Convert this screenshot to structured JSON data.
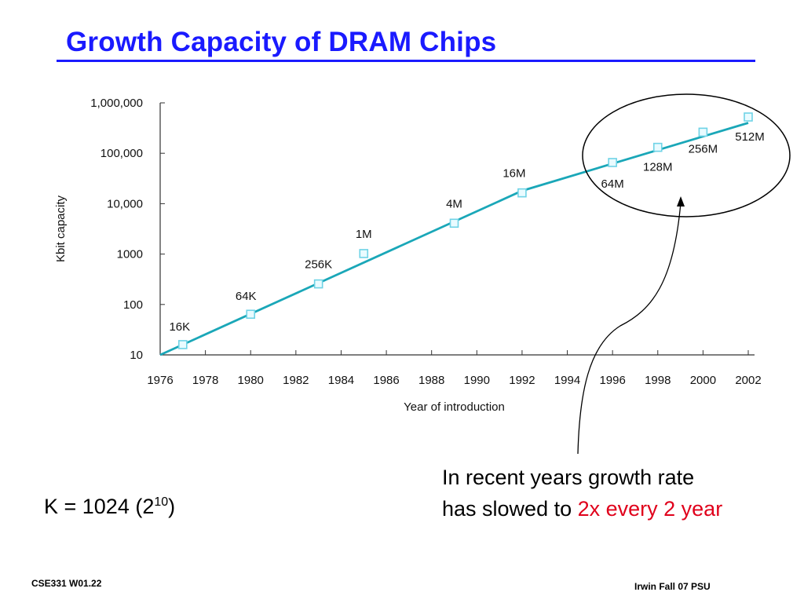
{
  "title": "Growth Capacity of DRAM Chips",
  "colors": {
    "title": "#1a1aff",
    "line": "#1aa7b8",
    "marker": "#6fd3e6",
    "highlight": "#e0001b"
  },
  "chart_data": {
    "type": "line",
    "title": "",
    "xlabel": "Year of introduction",
    "ylabel": "Kbit capacity",
    "yscale": "log",
    "xlim": [
      1976,
      2002
    ],
    "ylim": [
      10,
      1000000
    ],
    "x_ticks": [
      "1976",
      "1978",
      "1980",
      "1982",
      "1984",
      "1986",
      "1988",
      "1990",
      "1992",
      "1994",
      "1996",
      "1998",
      "2000",
      "2002"
    ],
    "y_ticks": [
      {
        "value": 10,
        "label": "10"
      },
      {
        "value": 100,
        "label": "100"
      },
      {
        "value": 1000,
        "label": "1000"
      },
      {
        "value": 10000,
        "label": "10,000"
      },
      {
        "value": 100000,
        "label": "100,000"
      },
      {
        "value": 1000000,
        "label": "1,000,000"
      }
    ],
    "trend_line": [
      {
        "x": 1976,
        "y": 10
      },
      {
        "x": 1992,
        "y": 18000
      },
      {
        "x": 2002,
        "y": 400000
      }
    ],
    "points": [
      {
        "x": 1977,
        "y": 16,
        "label": "16K"
      },
      {
        "x": 1980,
        "y": 64,
        "label": "64K"
      },
      {
        "x": 1983,
        "y": 256,
        "label": "256K"
      },
      {
        "x": 1985,
        "y": 1024,
        "label": "1M"
      },
      {
        "x": 1989,
        "y": 4096,
        "label": "4M"
      },
      {
        "x": 1992,
        "y": 16384,
        "label": "16M"
      },
      {
        "x": 1996,
        "y": 65536,
        "label": "64M"
      },
      {
        "x": 1998,
        "y": 131072,
        "label": "128M"
      },
      {
        "x": 2000,
        "y": 262144,
        "label": "256M"
      },
      {
        "x": 2002,
        "y": 524288,
        "label": "512M"
      }
    ],
    "grid": false
  },
  "note": {
    "text_before": "In recent years growth rate has slowed to ",
    "text_highlight": "2x every 2 year"
  },
  "kformula": {
    "main": "K = 1024 (2",
    "sup": "10",
    "close": ")"
  },
  "footer": {
    "left": "CSE331  W01.22",
    "right": "Irwin Fall 07  PSU"
  }
}
